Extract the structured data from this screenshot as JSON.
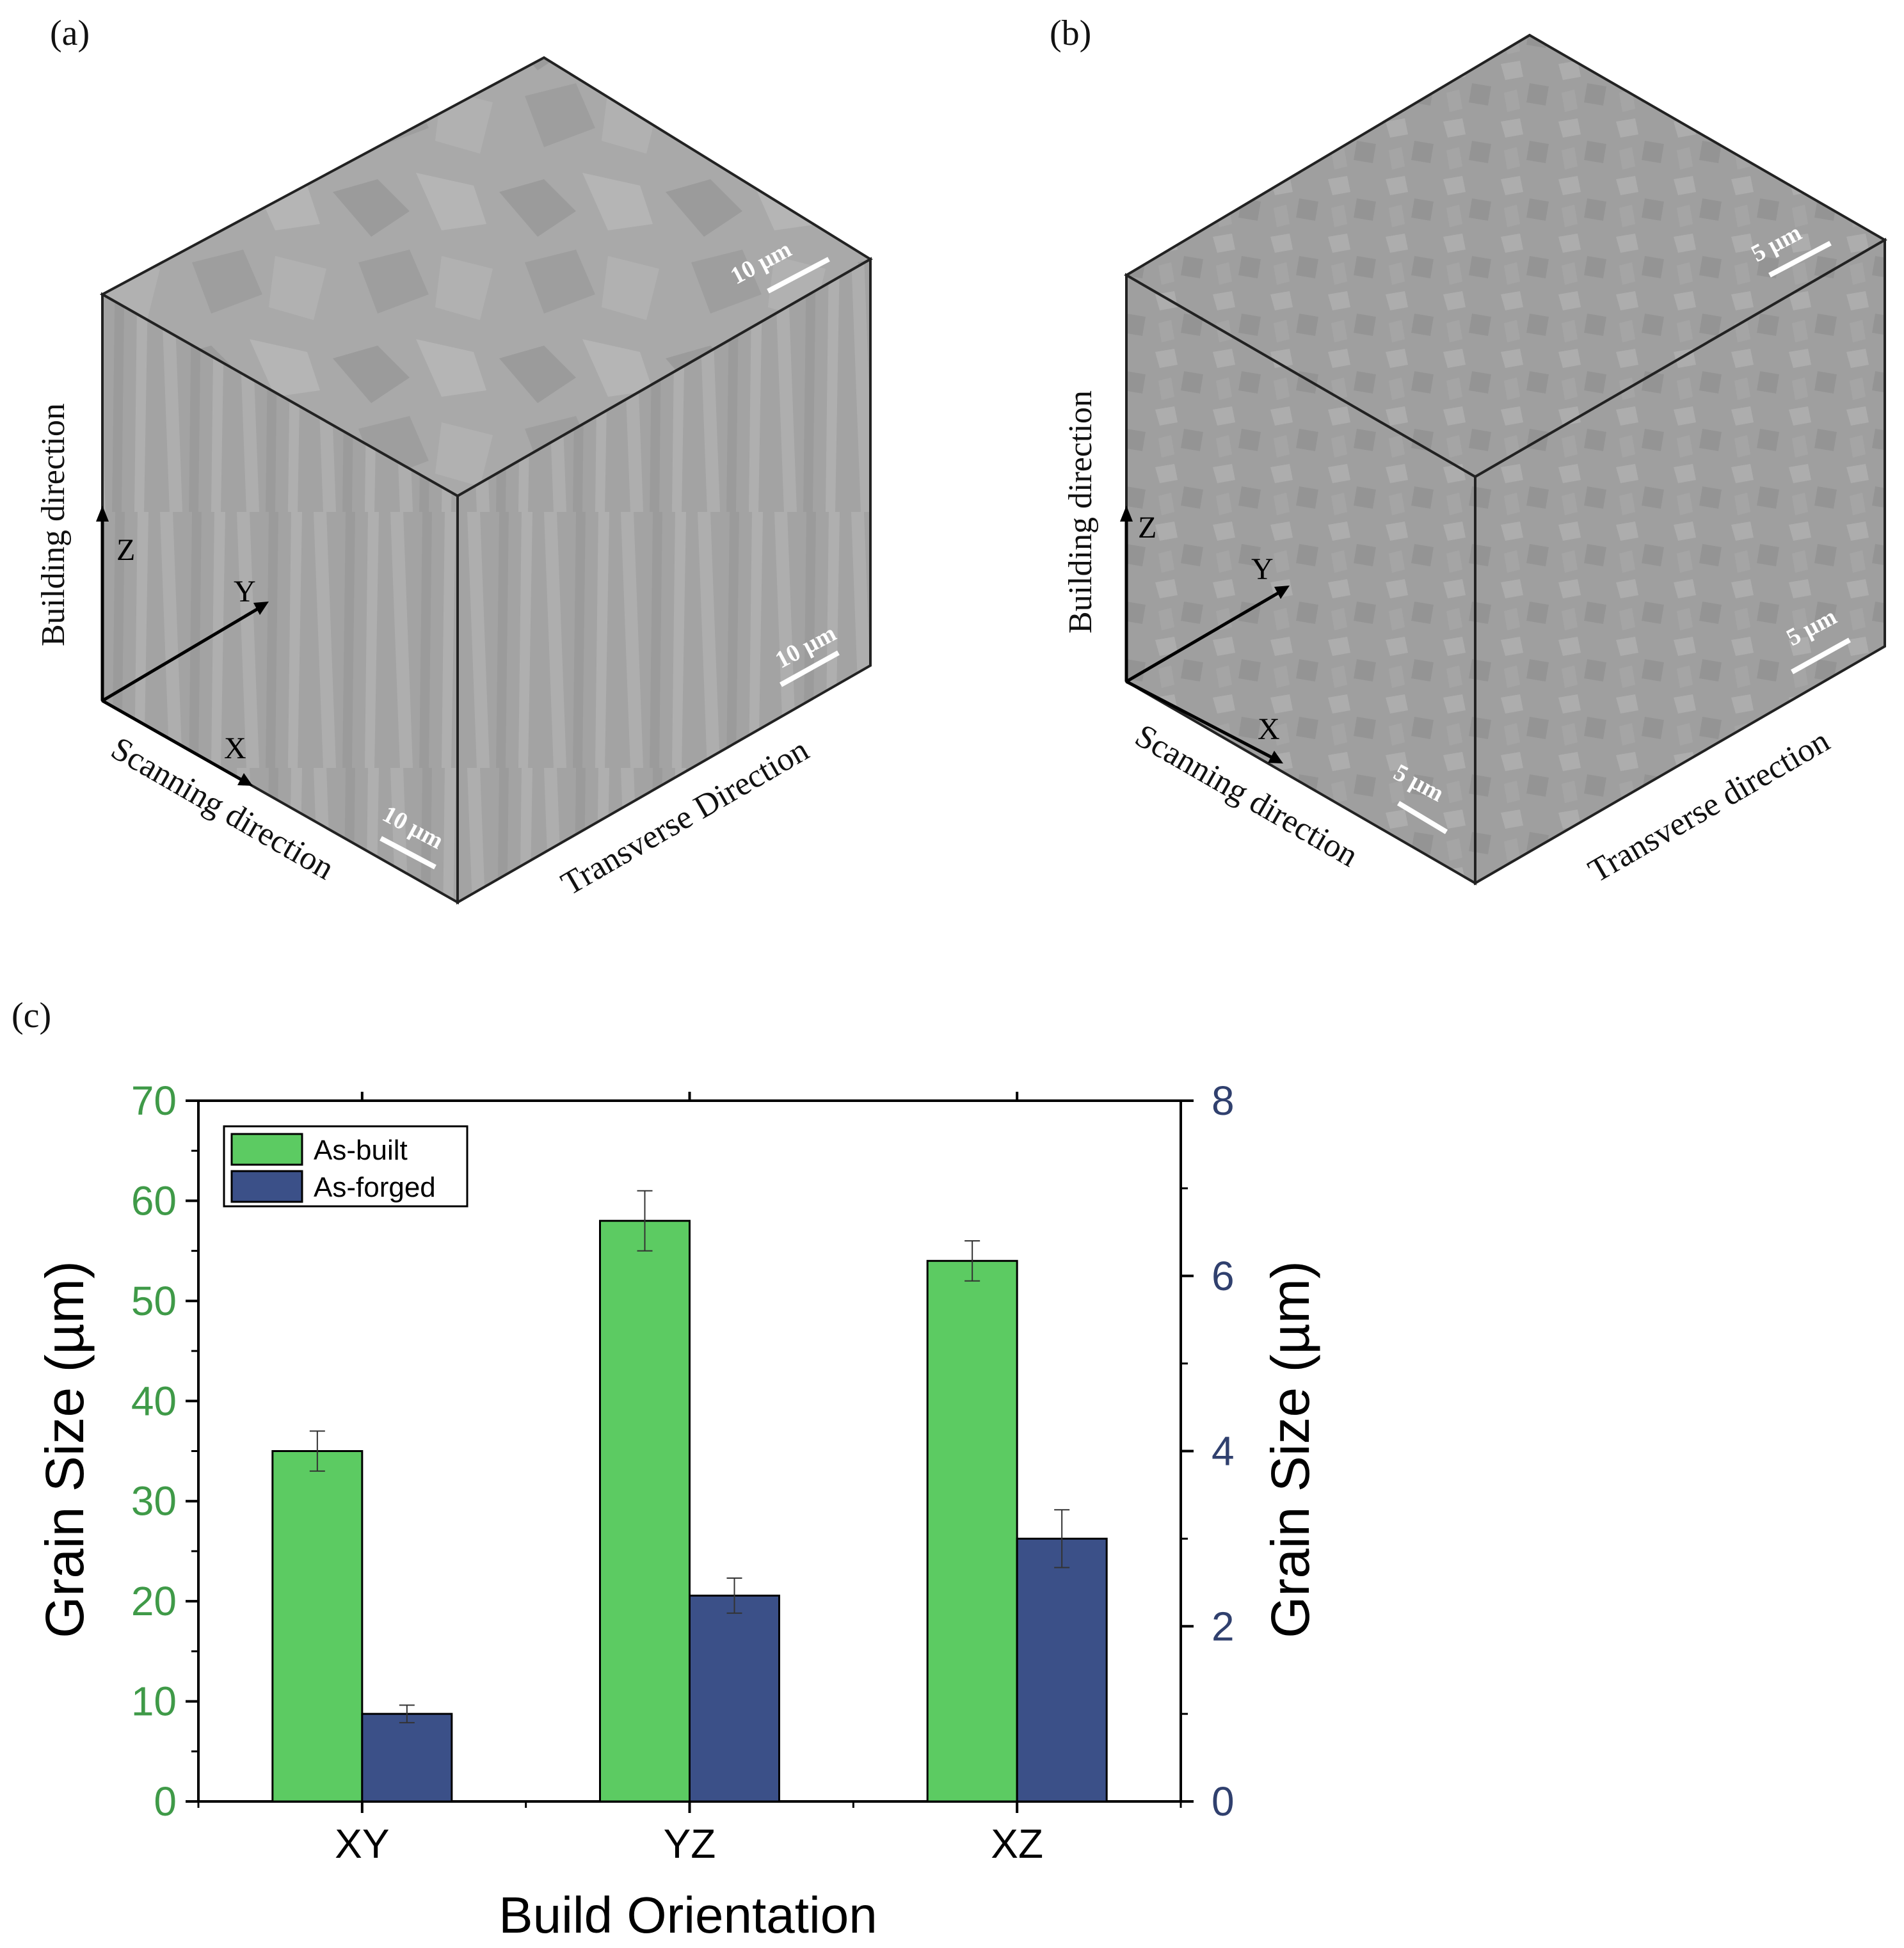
{
  "panels": {
    "a": {
      "label": "(a)",
      "scale_top": "10 µm",
      "scale_right": "10 µm",
      "scale_left": "10 µm",
      "axis_z": "Z",
      "axis_y": "Y",
      "axis_x": "X",
      "building_direction": "Building direction",
      "scanning_direction": "Scanning direction",
      "transverse_direction": "Transverse Direction"
    },
    "b": {
      "label": "(b)",
      "scale_top": "5 µm",
      "scale_right": "5 µm",
      "scale_left": "5 µm",
      "axis_z": "Z",
      "axis_y": "Y",
      "axis_x": "X",
      "building_direction": "Building direction",
      "scanning_direction": "Scanning direction",
      "transverse_direction": "Transverse direction"
    },
    "c": {
      "label": "(c)"
    }
  },
  "colors": {
    "as_built": "#5ccb62",
    "as_forged": "#3b5088",
    "left_axis": "#3f9a48",
    "right_axis": "#30406e"
  },
  "chart_data": {
    "type": "bar",
    "categories": [
      "XY",
      "YZ",
      "XZ"
    ],
    "xlabel": "Build Orientation",
    "ylabel_left": "Grain Size (µm)",
    "ylabel_right": "Grain Size (µm)",
    "ylim_left": [
      0,
      70
    ],
    "ylim_right": [
      0,
      8
    ],
    "yticks_left": [
      "0",
      "10",
      "20",
      "30",
      "40",
      "50",
      "60",
      "70"
    ],
    "yticks_right": [
      "0",
      "2",
      "4",
      "6",
      "8"
    ],
    "legend_position": "top-left",
    "series": [
      {
        "name": "As-built",
        "axis": "left",
        "values": [
          35,
          58,
          54
        ],
        "errors": [
          2,
          3,
          2
        ]
      },
      {
        "name": "As-forged",
        "axis": "right",
        "values": [
          1.0,
          2.35,
          3.0
        ],
        "errors": [
          0.1,
          0.2,
          0.33
        ]
      }
    ]
  }
}
